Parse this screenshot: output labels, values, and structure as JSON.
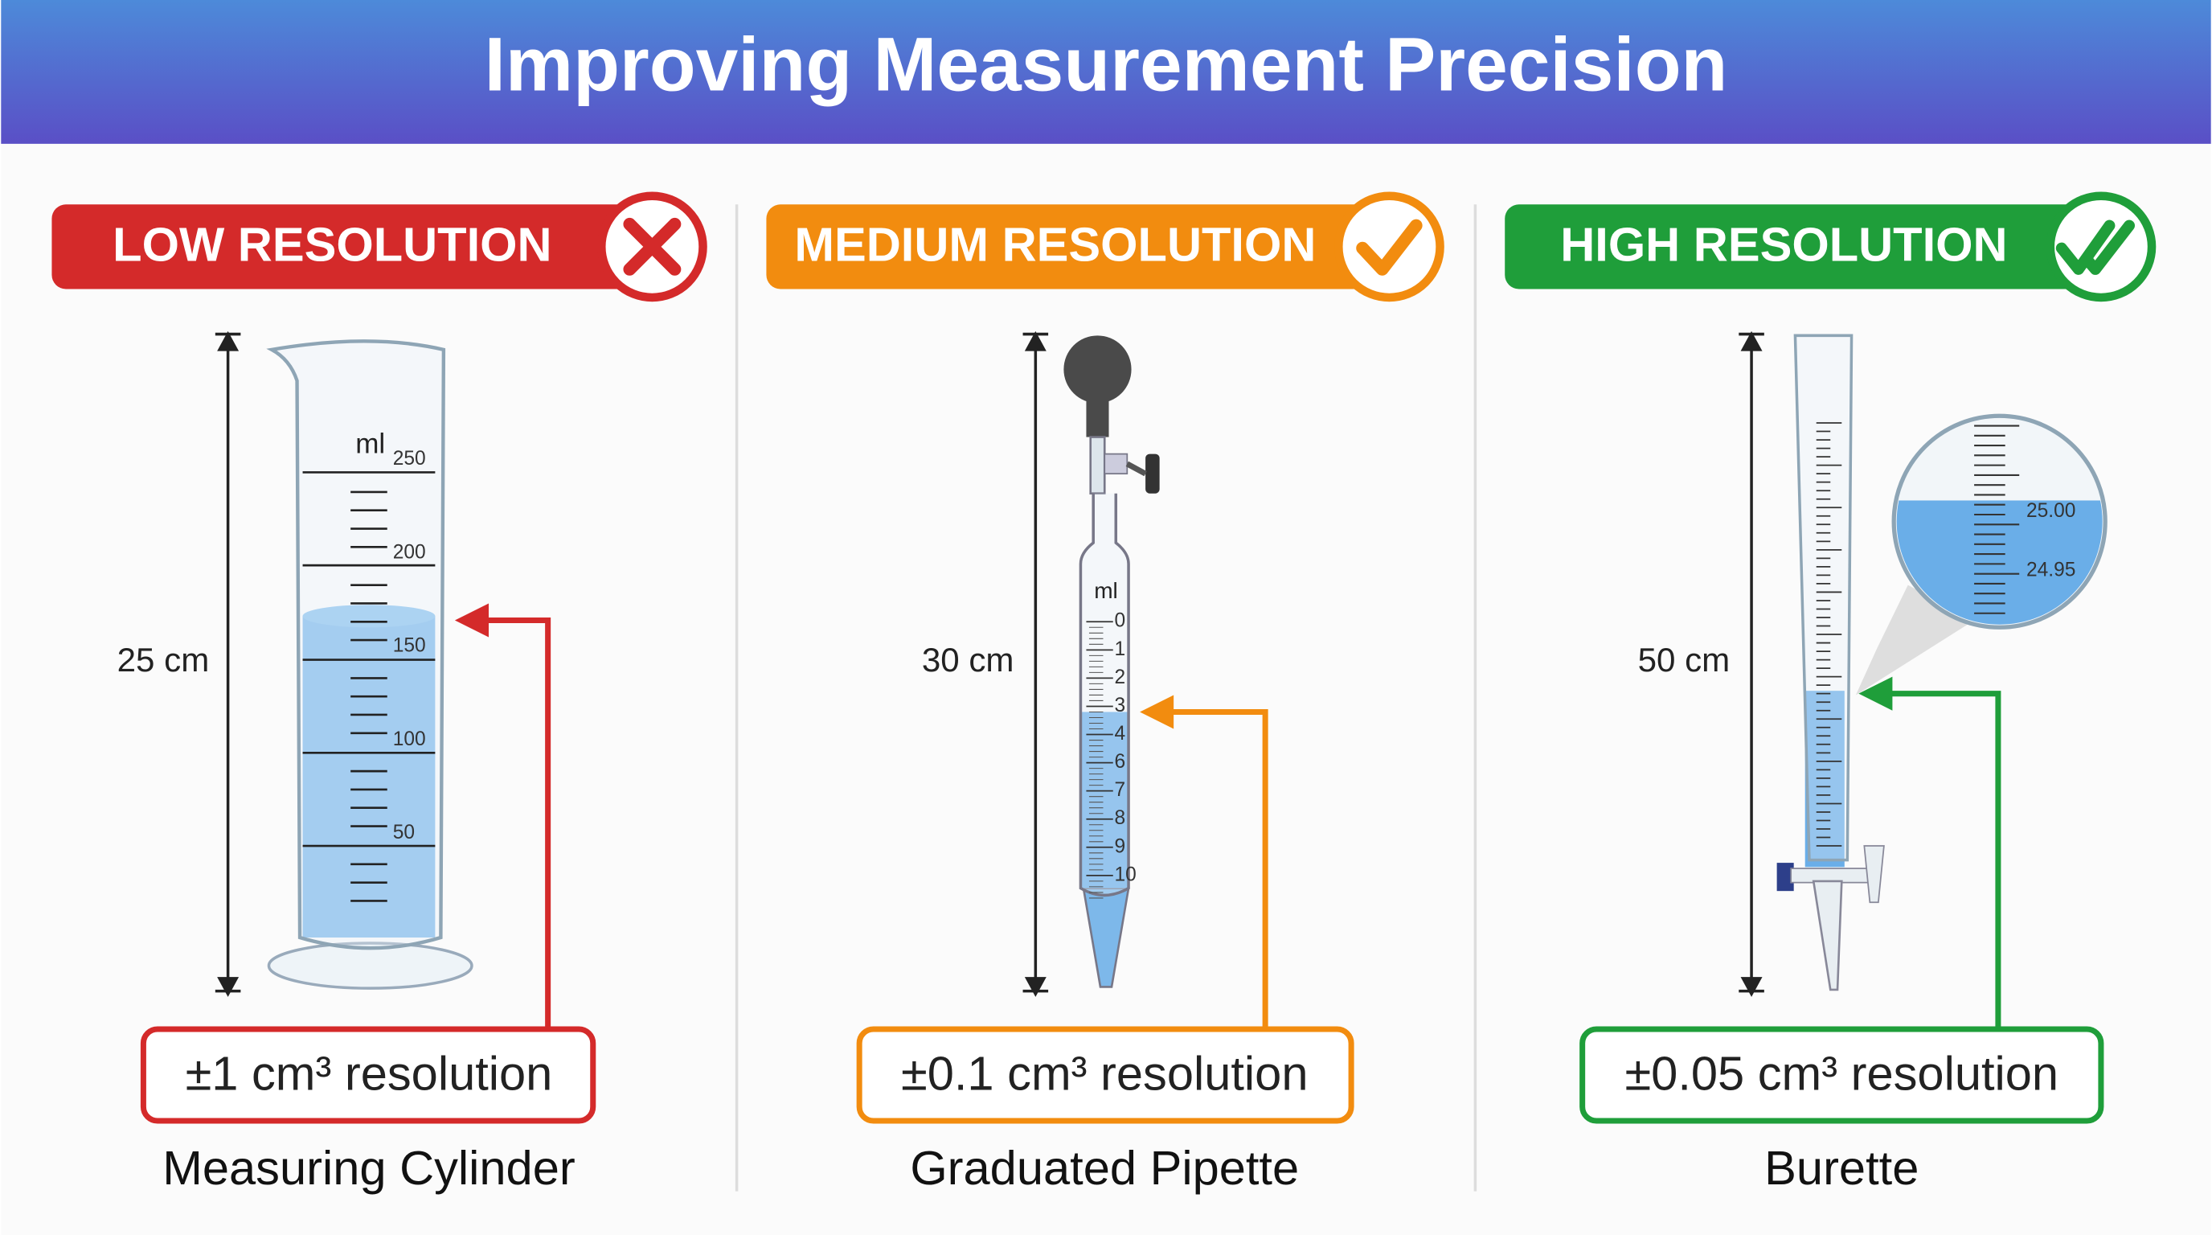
{
  "header": {
    "title": "Improving Measurement Precision"
  },
  "panels": [
    {
      "badge": "LOW RESOLUTION",
      "length": "25 cm",
      "unit": "ml",
      "scale": [
        "250",
        "200",
        "150",
        "100",
        "50"
      ],
      "resolution": "±1 cm³ resolution",
      "name": "Measuring Cylinder"
    },
    {
      "badge": "MEDIUM RESOLUTION",
      "length": "30 cm",
      "unit": "ml",
      "scale": [
        "0",
        "1",
        "2",
        "3",
        "4",
        "6",
        "7",
        "8",
        "9",
        "10"
      ],
      "resolution": "±0.1 cm³ resolution",
      "name": "Graduated Pipette"
    },
    {
      "badge": "HIGH RESOLUTION",
      "length": "50 cm",
      "magnifier": [
        "25.00",
        "24.95"
      ],
      "resolution": "±0.05 cm³ resolution",
      "name": "Burette"
    }
  ]
}
